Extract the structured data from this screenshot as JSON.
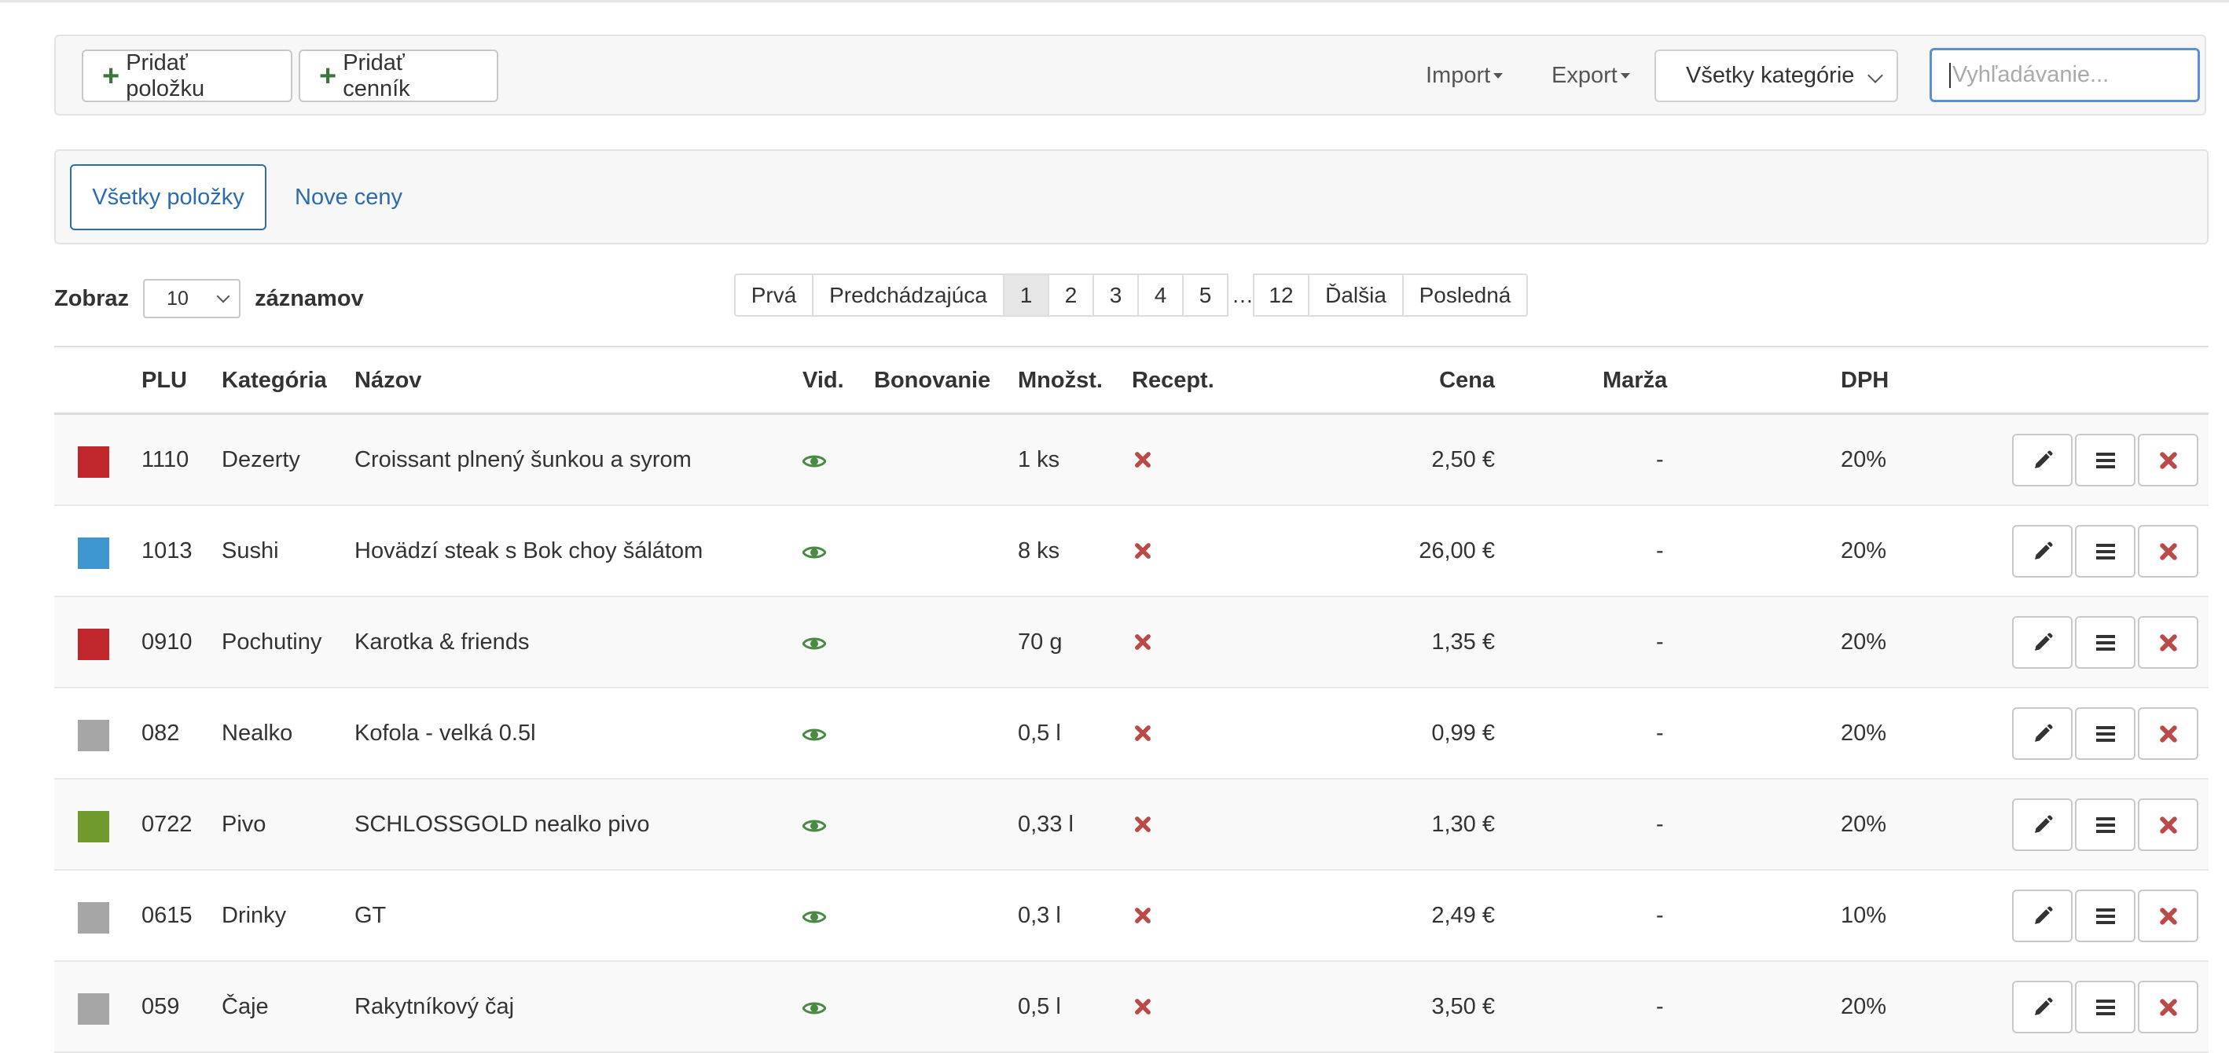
{
  "colors": {
    "accent": "#2b6cb0",
    "plus_green": "#3c763d",
    "eye_green": "#4a8a43",
    "x_red": "#b94a48"
  },
  "toolbar": {
    "add_item_label": "Pridať položku",
    "add_pricelist_label": "Pridať cenník",
    "import_label": "Import",
    "export_label": "Export",
    "category_select_value": "Všetky kategórie",
    "search_placeholder": "Vyhľadávanie..."
  },
  "tabs": [
    {
      "label": "Všetky položky",
      "active": true
    },
    {
      "label": "Nove ceny",
      "active": false
    }
  ],
  "length": {
    "prefix": "Zobraz",
    "value": "10",
    "suffix": "záznamov"
  },
  "pagination": {
    "first": "Prvá",
    "prev": "Predchádzajúca",
    "pages": [
      "1",
      "2",
      "3",
      "4",
      "5"
    ],
    "current": "1",
    "ellipsis": "…",
    "last_page": "12",
    "next": "Ďalšia",
    "last": "Posledná"
  },
  "table": {
    "headers": {
      "plu": "PLU",
      "category": "Kategória",
      "name": "Názov",
      "visible": "Vid.",
      "bonovanie": "Bonovanie",
      "qty": "Množst.",
      "recipe": "Recept.",
      "price": "Cena",
      "margin": "Marža",
      "vat": "DPH"
    },
    "rows": [
      {
        "color": "#c0272d",
        "plu": "1110",
        "category": "Dezerty",
        "name": "Croissant plnený šunkou a syrom",
        "visible": "eye-icon",
        "bonovanie": "",
        "qty": "1 ks",
        "recipe": "x-icon",
        "price": "2,50 €",
        "margin": "-",
        "vat": "20%"
      },
      {
        "color": "#3d96d0",
        "plu": "1013",
        "category": "Sushi",
        "name": "Hovädzí steak s Bok choy šálátom",
        "visible": "eye-icon",
        "bonovanie": "",
        "qty": "8 ks",
        "recipe": "x-icon",
        "price": "26,00 €",
        "margin": "-",
        "vat": "20%"
      },
      {
        "color": "#c0272d",
        "plu": "0910",
        "category": "Pochutiny",
        "name": "Karotka & friends",
        "visible": "eye-icon",
        "bonovanie": "",
        "qty": "70 g",
        "recipe": "x-icon",
        "price": "1,35 €",
        "margin": "-",
        "vat": "20%"
      },
      {
        "color": "#a6a6a6",
        "plu": "082",
        "category": "Nealko",
        "name": "Kofola - velká 0.5l",
        "visible": "eye-icon",
        "bonovanie": "",
        "qty": "0,5 l",
        "recipe": "x-icon",
        "price": "0,99 €",
        "margin": "-",
        "vat": "20%"
      },
      {
        "color": "#6e9a2e",
        "plu": "0722",
        "category": "Pivo",
        "name": "SCHLOSSGOLD nealko pivo",
        "visible": "eye-icon",
        "bonovanie": "",
        "qty": "0,33 l",
        "recipe": "x-icon",
        "price": "1,30 €",
        "margin": "-",
        "vat": "20%"
      },
      {
        "color": "#a6a6a6",
        "plu": "0615",
        "category": "Drinky",
        "name": "GT",
        "visible": "eye-icon",
        "bonovanie": "",
        "qty": "0,3 l",
        "recipe": "x-icon",
        "price": "2,49 €",
        "margin": "-",
        "vat": "10%"
      },
      {
        "color": "#a6a6a6",
        "plu": "059",
        "category": "Čaje",
        "name": "Rakytníkový čaj",
        "visible": "eye-icon",
        "bonovanie": "",
        "qty": "0,5 l",
        "recipe": "x-icon",
        "price": "3,50 €",
        "margin": "-",
        "vat": "20%"
      }
    ]
  }
}
